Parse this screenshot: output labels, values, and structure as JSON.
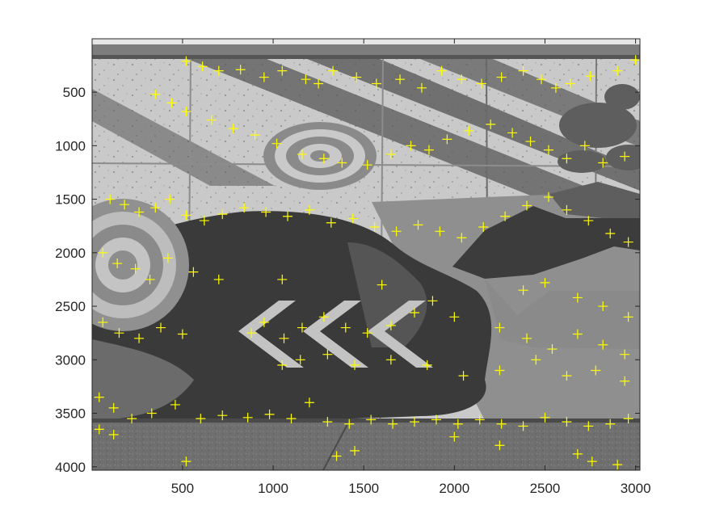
{
  "chart_data": {
    "type": "scatter",
    "title": "",
    "xlabel": "",
    "ylabel": "",
    "xlim": [
      1,
      3024
    ],
    "ylim": [
      1,
      4032
    ],
    "y_direction": "reverse",
    "grid": false,
    "legend": "none",
    "background": "grayscale photograph of a painted concrete mural wall (bullseye targets, diagonal stripes, chevron arrows, dark splash shape) with sidewalk at bottom",
    "marker": {
      "shape": "plus",
      "color": "#ffff00"
    },
    "x_ticks": [
      500,
      1000,
      1500,
      2000,
      2500,
      3000
    ],
    "x_tick_labels": [
      "500",
      "1000",
      "1500",
      "2000",
      "2500",
      "3000"
    ],
    "y_ticks": [
      500,
      1000,
      1500,
      2000,
      2500,
      3000,
      3500,
      4000
    ],
    "y_tick_labels": [
      "500",
      "1000",
      "1500",
      "2000",
      "2500",
      "3000",
      "3500",
      "4000"
    ],
    "series": [
      {
        "points": [
          [
            520,
            210
          ],
          [
            610,
            260
          ],
          [
            700,
            300
          ],
          [
            820,
            290
          ],
          [
            950,
            360
          ],
          [
            1050,
            300
          ],
          [
            1180,
            380
          ],
          [
            1250,
            420
          ],
          [
            1330,
            300
          ],
          [
            1460,
            360
          ],
          [
            1570,
            420
          ],
          [
            1700,
            380
          ],
          [
            1820,
            460
          ],
          [
            1930,
            300
          ],
          [
            2040,
            380
          ],
          [
            2150,
            420
          ],
          [
            2260,
            360
          ],
          [
            2380,
            300
          ],
          [
            2480,
            380
          ],
          [
            2560,
            460
          ],
          [
            2640,
            420
          ],
          [
            2750,
            350
          ],
          [
            2900,
            300
          ],
          [
            3000,
            200
          ],
          [
            350,
            520
          ],
          [
            440,
            600
          ],
          [
            520,
            680
          ],
          [
            660,
            760
          ],
          [
            780,
            840
          ],
          [
            900,
            900
          ],
          [
            1020,
            980
          ],
          [
            1160,
            1080
          ],
          [
            1280,
            1120
          ],
          [
            1380,
            1160
          ],
          [
            1520,
            1180
          ],
          [
            1650,
            1080
          ],
          [
            1760,
            1000
          ],
          [
            1860,
            1040
          ],
          [
            1960,
            940
          ],
          [
            2080,
            860
          ],
          [
            2200,
            800
          ],
          [
            2320,
            880
          ],
          [
            2420,
            960
          ],
          [
            2520,
            1040
          ],
          [
            2620,
            1120
          ],
          [
            2720,
            1000
          ],
          [
            2820,
            1160
          ],
          [
            2940,
            1100
          ],
          [
            100,
            1500
          ],
          [
            180,
            1550
          ],
          [
            260,
            1620
          ],
          [
            350,
            1580
          ],
          [
            430,
            1500
          ],
          [
            520,
            1650
          ],
          [
            620,
            1700
          ],
          [
            720,
            1640
          ],
          [
            840,
            1580
          ],
          [
            960,
            1620
          ],
          [
            1080,
            1660
          ],
          [
            1200,
            1600
          ],
          [
            1320,
            1720
          ],
          [
            1440,
            1680
          ],
          [
            1560,
            1760
          ],
          [
            1680,
            1800
          ],
          [
            1800,
            1740
          ],
          [
            1920,
            1800
          ],
          [
            2040,
            1860
          ],
          [
            2160,
            1760
          ],
          [
            2280,
            1660
          ],
          [
            2400,
            1560
          ],
          [
            2520,
            1480
          ],
          [
            2620,
            1600
          ],
          [
            2740,
            1700
          ],
          [
            2860,
            1820
          ],
          [
            2960,
            1900
          ],
          [
            60,
            2000
          ],
          [
            140,
            2100
          ],
          [
            240,
            2150
          ],
          [
            320,
            2250
          ],
          [
            420,
            2050
          ],
          [
            560,
            2180
          ],
          [
            700,
            2250
          ],
          [
            1050,
            2250
          ],
          [
            1600,
            2300
          ],
          [
            2380,
            2350
          ],
          [
            2500,
            2280
          ],
          [
            2680,
            2420
          ],
          [
            2820,
            2500
          ],
          [
            2960,
            2600
          ],
          [
            60,
            2650
          ],
          [
            150,
            2750
          ],
          [
            260,
            2800
          ],
          [
            380,
            2700
          ],
          [
            500,
            2760
          ],
          [
            880,
            2750
          ],
          [
            950,
            2650
          ],
          [
            1060,
            2800
          ],
          [
            1160,
            2700
          ],
          [
            1280,
            2600
          ],
          [
            1400,
            2700
          ],
          [
            1520,
            2750
          ],
          [
            1650,
            2680
          ],
          [
            1780,
            2560
          ],
          [
            1880,
            2450
          ],
          [
            2000,
            2600
          ],
          [
            2250,
            2700
          ],
          [
            2400,
            2800
          ],
          [
            2540,
            2900
          ],
          [
            2680,
            2760
          ],
          [
            2820,
            2860
          ],
          [
            2940,
            2950
          ],
          [
            1050,
            3050
          ],
          [
            1150,
            3000
          ],
          [
            1300,
            2950
          ],
          [
            1450,
            3050
          ],
          [
            1650,
            3000
          ],
          [
            1850,
            3050
          ],
          [
            2050,
            3150
          ],
          [
            2250,
            3100
          ],
          [
            2450,
            3000
          ],
          [
            2620,
            3150
          ],
          [
            2780,
            3100
          ],
          [
            2940,
            3200
          ],
          [
            40,
            3350
          ],
          [
            120,
            3450
          ],
          [
            220,
            3550
          ],
          [
            330,
            3500
          ],
          [
            460,
            3420
          ],
          [
            600,
            3550
          ],
          [
            720,
            3520
          ],
          [
            860,
            3540
          ],
          [
            980,
            3510
          ],
          [
            1100,
            3550
          ],
          [
            1200,
            3400
          ],
          [
            1300,
            3580
          ],
          [
            1420,
            3600
          ],
          [
            1540,
            3560
          ],
          [
            1660,
            3600
          ],
          [
            1780,
            3580
          ],
          [
            1900,
            3560
          ],
          [
            2020,
            3600
          ],
          [
            2140,
            3560
          ],
          [
            2260,
            3600
          ],
          [
            2380,
            3620
          ],
          [
            2500,
            3540
          ],
          [
            2620,
            3580
          ],
          [
            2740,
            3620
          ],
          [
            2860,
            3600
          ],
          [
            2960,
            3550
          ],
          [
            40,
            3650
          ],
          [
            120,
            3700
          ],
          [
            520,
            3950
          ],
          [
            1350,
            3900
          ],
          [
            1450,
            3850
          ],
          [
            2000,
            3720
          ],
          [
            2250,
            3800
          ],
          [
            2680,
            3880
          ],
          [
            2760,
            3950
          ],
          [
            2900,
            3980
          ]
        ]
      }
    ]
  }
}
